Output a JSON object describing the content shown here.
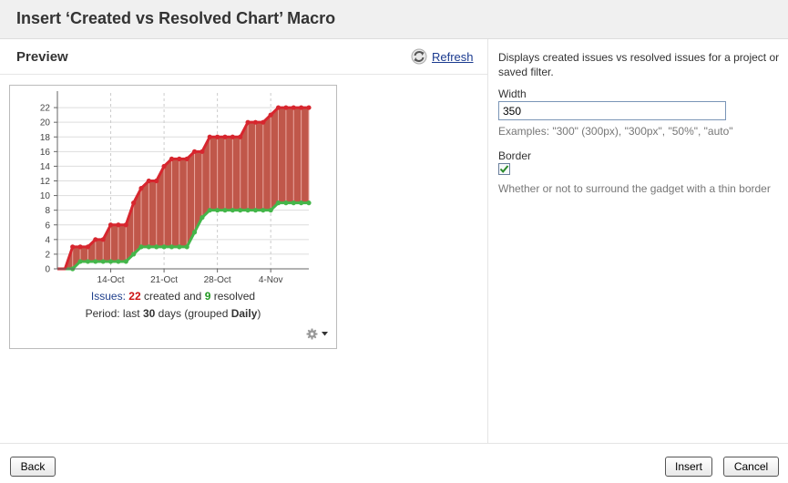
{
  "dialog": {
    "title": "Insert ‘Created vs Resolved Chart’ Macro"
  },
  "preview": {
    "title": "Preview",
    "refresh_label": "Refresh"
  },
  "summary": {
    "issues_prefix": "Issues:",
    "created_count": "22",
    "created_text": "created and",
    "resolved_count": "9",
    "resolved_text": "resolved",
    "period_prefix": "Period: last",
    "period_days": "30",
    "period_middle": "days (grouped",
    "period_grouping": "Daily",
    "period_suffix": ")"
  },
  "options": {
    "description": "Displays created issues vs resolved issues for a project or saved filter.",
    "width_label": "Width",
    "width_value": "350",
    "width_hint": "Examples: \"300\" (300px), \"300px\", \"50%\", \"auto\"",
    "border_label": "Border",
    "border_checked": true,
    "border_hint": "Whether or not to surround the gadget with a thin border"
  },
  "footer": {
    "back_label": "Back",
    "insert_label": "Insert",
    "cancel_label": "Cancel"
  },
  "icons": {
    "refresh": "refresh-icon",
    "gear": "gear-icon",
    "dropdown": "chevron-down-icon",
    "checkmark": "checkmark-icon"
  },
  "chart_data": {
    "type": "area",
    "x": [
      "7-Oct",
      "8-Oct",
      "9-Oct",
      "10-Oct",
      "11-Oct",
      "12-Oct",
      "13-Oct",
      "14-Oct",
      "15-Oct",
      "16-Oct",
      "17-Oct",
      "18-Oct",
      "19-Oct",
      "20-Oct",
      "21-Oct",
      "22-Oct",
      "23-Oct",
      "24-Oct",
      "25-Oct",
      "26-Oct",
      "27-Oct",
      "28-Oct",
      "29-Oct",
      "30-Oct",
      "31-Oct",
      "1-Nov",
      "2-Nov",
      "3-Nov",
      "4-Nov",
      "5-Nov",
      "6-Nov",
      "7-Nov",
      "8-Nov",
      "9-Nov"
    ],
    "x_tick_labels": [
      "14-Oct",
      "21-Oct",
      "28-Oct",
      "4-Nov"
    ],
    "y_ticks": [
      0,
      2,
      4,
      6,
      8,
      10,
      12,
      14,
      16,
      18,
      20,
      22
    ],
    "ylim": [
      0,
      24
    ],
    "grid": true,
    "series": [
      {
        "color": "#d7262e",
        "values": [
          0,
          0,
          3,
          3,
          3,
          4,
          4,
          6,
          6,
          6,
          9,
          11,
          12,
          12,
          14,
          15,
          15,
          15,
          16,
          16,
          18,
          18,
          18,
          18,
          18,
          20,
          20,
          20,
          21,
          22,
          22,
          22,
          22,
          22
        ]
      },
      {
        "color": "#44b64a",
        "values": [
          0,
          0,
          0,
          1,
          1,
          1,
          1,
          1,
          1,
          1,
          2,
          3,
          3,
          3,
          3,
          3,
          3,
          3,
          5,
          7,
          8,
          8,
          8,
          8,
          8,
          8,
          8,
          8,
          8,
          9,
          9,
          9,
          9,
          9
        ]
      }
    ],
    "fill_color": "#c0574a"
  }
}
